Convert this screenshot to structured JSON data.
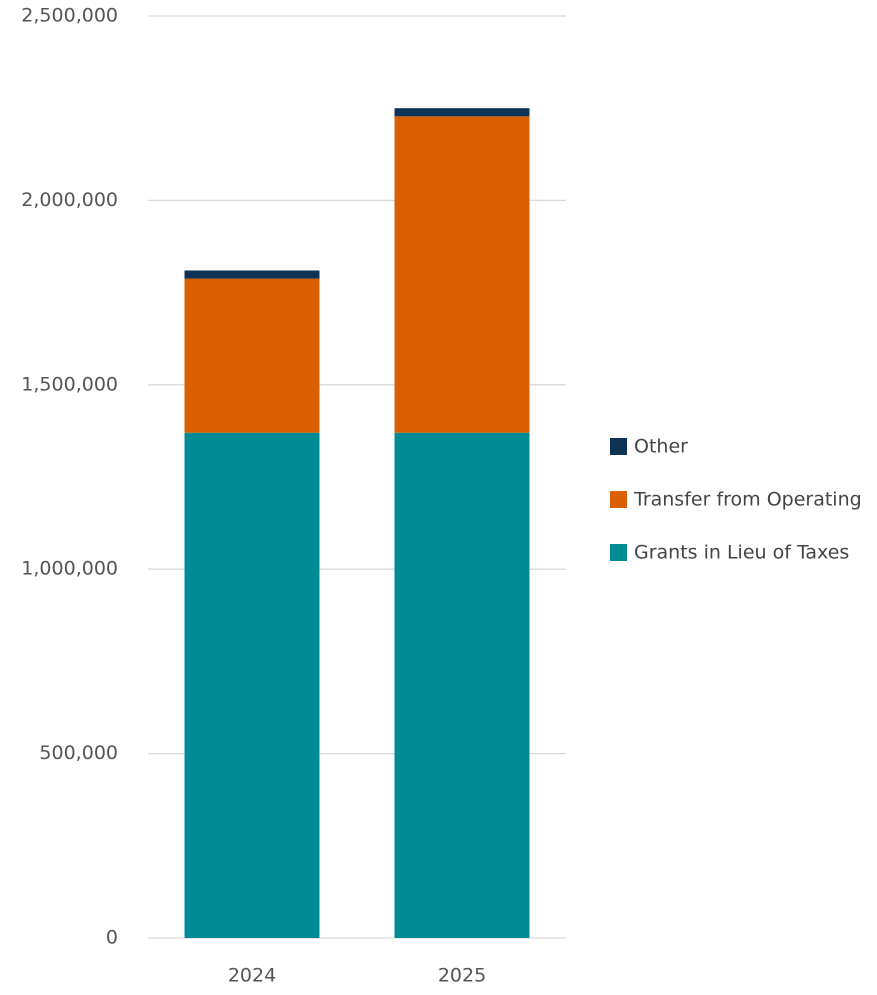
{
  "chart_data": {
    "type": "bar",
    "stacked": true,
    "categories": [
      "2024",
      "2025"
    ],
    "series": [
      {
        "name": "Grants in Lieu of Taxes",
        "color": "#008c95",
        "values": [
          1370000,
          1370000
        ]
      },
      {
        "name": "Transfer from Operating",
        "color": "#d95f02",
        "values": [
          418000,
          858000
        ]
      },
      {
        "name": "Other",
        "color": "#0f3355",
        "values": [
          22000,
          22000
        ]
      }
    ],
    "legend_order": [
      "Other",
      "Transfer from Operating",
      "Grants in Lieu of Taxes"
    ],
    "ylim": [
      0,
      2500000
    ],
    "yticks": [
      "0",
      "500,000",
      "1,000,000",
      "1,500,000",
      "2,000,000",
      "2,500,000"
    ],
    "grid": true,
    "legend_position": "right",
    "title": "",
    "xlabel": "",
    "ylabel": ""
  }
}
